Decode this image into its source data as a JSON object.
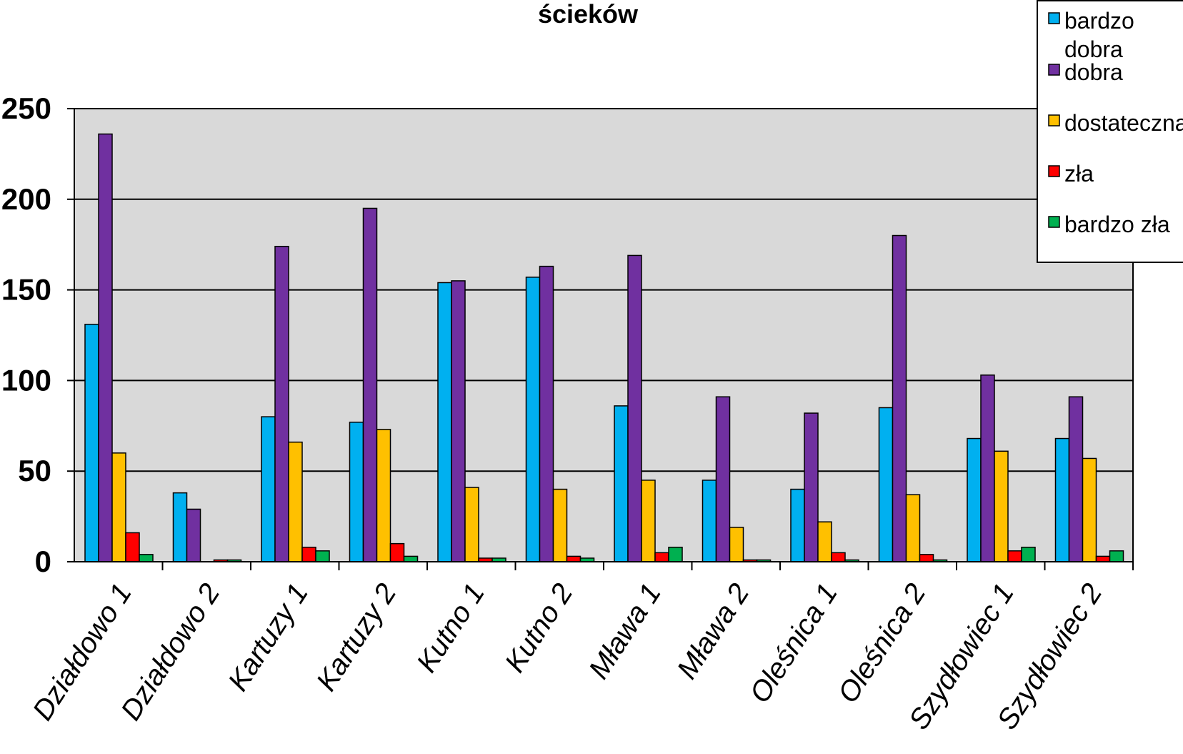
{
  "chart_data": {
    "type": "bar",
    "title": "ścieków",
    "categories": [
      "Działdowo 1",
      "Działdowo 2",
      "Kartuzy 1",
      "Kartuzy 2",
      "Kutno 1",
      "Kutno 2",
      "Mława 1",
      "Mława 2",
      "Oleśnica 1",
      "Oleśnica 2",
      "Szydłowiec 1",
      "Szydłowiec 2"
    ],
    "series": [
      {
        "name": "bardzo dobra",
        "color": "#00b0f0",
        "values": [
          131,
          38,
          80,
          77,
          154,
          157,
          86,
          45,
          40,
          85,
          68,
          68
        ]
      },
      {
        "name": "dobra",
        "color": "#7030a0",
        "values": [
          236,
          29,
          174,
          195,
          155,
          163,
          169,
          91,
          82,
          180,
          103,
          91
        ]
      },
      {
        "name": "dostateczna",
        "color": "#ffc000",
        "values": [
          60,
          0,
          66,
          73,
          41,
          40,
          45,
          19,
          22,
          37,
          61,
          57
        ]
      },
      {
        "name": "zła",
        "color": "#ff0000",
        "values": [
          16,
          1,
          8,
          10,
          2,
          3,
          5,
          1,
          5,
          4,
          6,
          3
        ]
      },
      {
        "name": "bardzo zła",
        "color": "#00b050",
        "values": [
          4,
          1,
          6,
          3,
          2,
          2,
          8,
          1,
          1,
          1,
          8,
          6
        ]
      }
    ],
    "yticks": [
      "0",
      "50",
      "100",
      "150",
      "200",
      "250"
    ],
    "ylim": [
      0,
      250
    ],
    "grid": true,
    "plot_background": "#d9d9d9",
    "legend_position": "top-right"
  }
}
